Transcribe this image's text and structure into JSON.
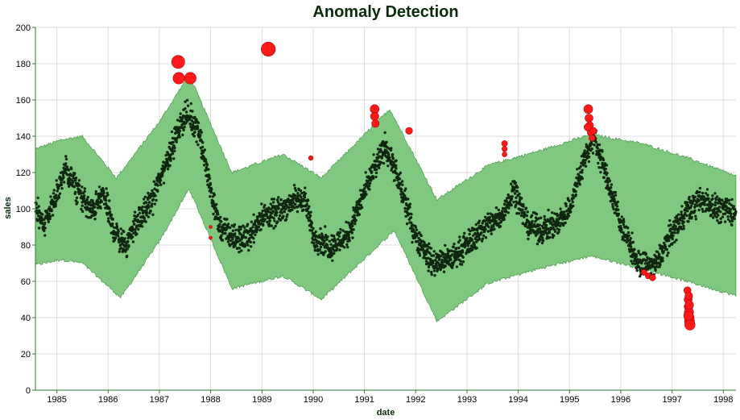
{
  "chart_data": {
    "type": "scatter",
    "title": "Anomaly Detection",
    "xlabel": "date",
    "ylabel": "sales",
    "x_range": [
      "1984-08-01",
      "1998-04-01"
    ],
    "ylim": [
      0,
      200
    ],
    "y_ticks": [
      0,
      20,
      40,
      60,
      80,
      100,
      120,
      140,
      160,
      180,
      200
    ],
    "x_ticks": [
      "1985",
      "1986",
      "1987",
      "1988",
      "1989",
      "1990",
      "1991",
      "1992",
      "1993",
      "1994",
      "1995",
      "1996",
      "1997",
      "1998"
    ],
    "grid": true,
    "colors": {
      "band": "#80c880",
      "band_edge": "#3f8f3f",
      "points": "#0f260f",
      "anomaly": "#ff1a1a",
      "anomaly_edge": "#b00000",
      "axis": "#2e7d32",
      "grid": "#dddddd"
    },
    "series": [
      {
        "type": "area",
        "upper": [
          [
            "1984-08-01",
            133
          ],
          [
            "1985-02-01",
            138
          ],
          [
            "1985-07-01",
            140
          ],
          [
            "1986-03-01",
            117
          ],
          [
            "1987-01-01",
            148
          ],
          [
            "1987-08-01",
            174
          ],
          [
            "1988-06-01",
            120
          ],
          [
            "1989-06-01",
            130
          ],
          [
            "1990-03-01",
            117
          ],
          [
            "1991-07-01",
            155
          ],
          [
            "1992-06-01",
            105
          ],
          [
            "1993-06-01",
            124
          ],
          [
            "1994-06-01",
            132
          ],
          [
            "1995-06-01",
            141
          ],
          [
            "1996-06-01",
            136
          ],
          [
            "1997-06-01",
            127
          ],
          [
            "1998-04-01",
            118
          ]
        ],
        "lower": [
          [
            "1984-08-01",
            69
          ],
          [
            "1985-02-01",
            72
          ],
          [
            "1985-07-01",
            70
          ],
          [
            "1986-04-01",
            51
          ],
          [
            "1987-01-01",
            82
          ],
          [
            "1987-08-01",
            111
          ],
          [
            "1988-06-01",
            56
          ],
          [
            "1989-06-01",
            63
          ],
          [
            "1990-03-01",
            50
          ],
          [
            "1991-08-01",
            88
          ],
          [
            "1992-06-01",
            38
          ],
          [
            "1993-06-01",
            59
          ],
          [
            "1994-06-01",
            67
          ],
          [
            "1995-06-01",
            74
          ],
          [
            "1996-06-01",
            67
          ],
          [
            "1997-06-01",
            59
          ],
          [
            "1998-04-01",
            52
          ]
        ]
      },
      {
        "type": "scatter",
        "role": "observed",
        "curve": [
          [
            "1984-08-01",
            100
          ],
          [
            "1984-10-01",
            92
          ],
          [
            "1985-01-01",
            108
          ],
          [
            "1985-03-01",
            122
          ],
          [
            "1985-06-01",
            110
          ],
          [
            "1985-09-01",
            98
          ],
          [
            "1985-12-01",
            108
          ],
          [
            "1986-02-01",
            90
          ],
          [
            "1986-05-01",
            79
          ],
          [
            "1986-07-01",
            90
          ],
          [
            "1986-11-01",
            103
          ],
          [
            "1987-03-01",
            128
          ],
          [
            "1987-07-01",
            152
          ],
          [
            "1987-10-01",
            145
          ],
          [
            "1987-12-01",
            122
          ],
          [
            "1988-03-01",
            90
          ],
          [
            "1988-07-01",
            83
          ],
          [
            "1988-10-01",
            85
          ],
          [
            "1989-01-01",
            96
          ],
          [
            "1989-04-01",
            97
          ],
          [
            "1989-08-01",
            104
          ],
          [
            "1989-11-01",
            106
          ],
          [
            "1990-01-01",
            85
          ],
          [
            "1990-05-01",
            79
          ],
          [
            "1990-09-01",
            85
          ],
          [
            "1991-02-01",
            115
          ],
          [
            "1991-06-01",
            135
          ],
          [
            "1991-09-01",
            115
          ],
          [
            "1992-01-01",
            85
          ],
          [
            "1992-05-01",
            70
          ],
          [
            "1992-09-01",
            72
          ],
          [
            "1993-01-01",
            80
          ],
          [
            "1993-05-01",
            90
          ],
          [
            "1993-09-01",
            95
          ],
          [
            "1993-12-01",
            112
          ],
          [
            "1994-03-01",
            92
          ],
          [
            "1994-06-01",
            88
          ],
          [
            "1994-10-01",
            92
          ],
          [
            "1995-01-01",
            100
          ],
          [
            "1995-05-01",
            131
          ],
          [
            "1995-07-01",
            139
          ],
          [
            "1995-10-01",
            115
          ],
          [
            "1996-01-01",
            92
          ],
          [
            "1996-05-01",
            70
          ],
          [
            "1996-09-01",
            68
          ],
          [
            "1996-12-01",
            83
          ],
          [
            "1997-04-01",
            98
          ],
          [
            "1997-08-01",
            105
          ],
          [
            "1997-12-01",
            100
          ],
          [
            "1998-04-01",
            98
          ]
        ]
      },
      {
        "type": "scatter",
        "role": "anomalies",
        "points": [
          [
            "1987-05-15",
            181
          ],
          [
            "1987-05-20",
            172
          ],
          [
            "1987-08-10",
            172
          ],
          [
            "1988-01-01",
            84
          ],
          [
            "1988-01-01",
            90
          ],
          [
            "1989-02-15",
            188
          ],
          [
            "1989-12-15",
            128
          ],
          [
            "1991-03-15",
            155
          ],
          [
            "1991-03-15",
            151
          ],
          [
            "1991-03-20",
            147
          ],
          [
            "1991-11-15",
            143
          ],
          [
            "1993-09-25",
            136
          ],
          [
            "1993-09-25",
            133
          ],
          [
            "1993-09-25",
            130
          ],
          [
            "1995-05-15",
            155
          ],
          [
            "1995-05-20",
            150
          ],
          [
            "1995-05-25",
            146
          ],
          [
            "1995-06-01",
            142
          ],
          [
            "1995-06-10",
            139
          ],
          [
            "1995-05-10",
            145
          ],
          [
            "1995-06-20",
            143
          ],
          [
            "1996-06-15",
            65
          ],
          [
            "1996-07-15",
            63
          ],
          [
            "1996-08-15",
            62
          ],
          [
            "1997-04-20",
            55
          ],
          [
            "1997-04-25",
            50
          ],
          [
            "1997-04-28",
            46
          ],
          [
            "1997-05-01",
            43
          ],
          [
            "1997-05-03",
            40
          ],
          [
            "1997-05-05",
            38
          ],
          [
            "1997-05-08",
            36
          ],
          [
            "1997-04-28",
            41
          ],
          [
            "1997-05-03",
            47
          ],
          [
            "1997-04-30",
            52
          ]
        ]
      }
    ]
  }
}
